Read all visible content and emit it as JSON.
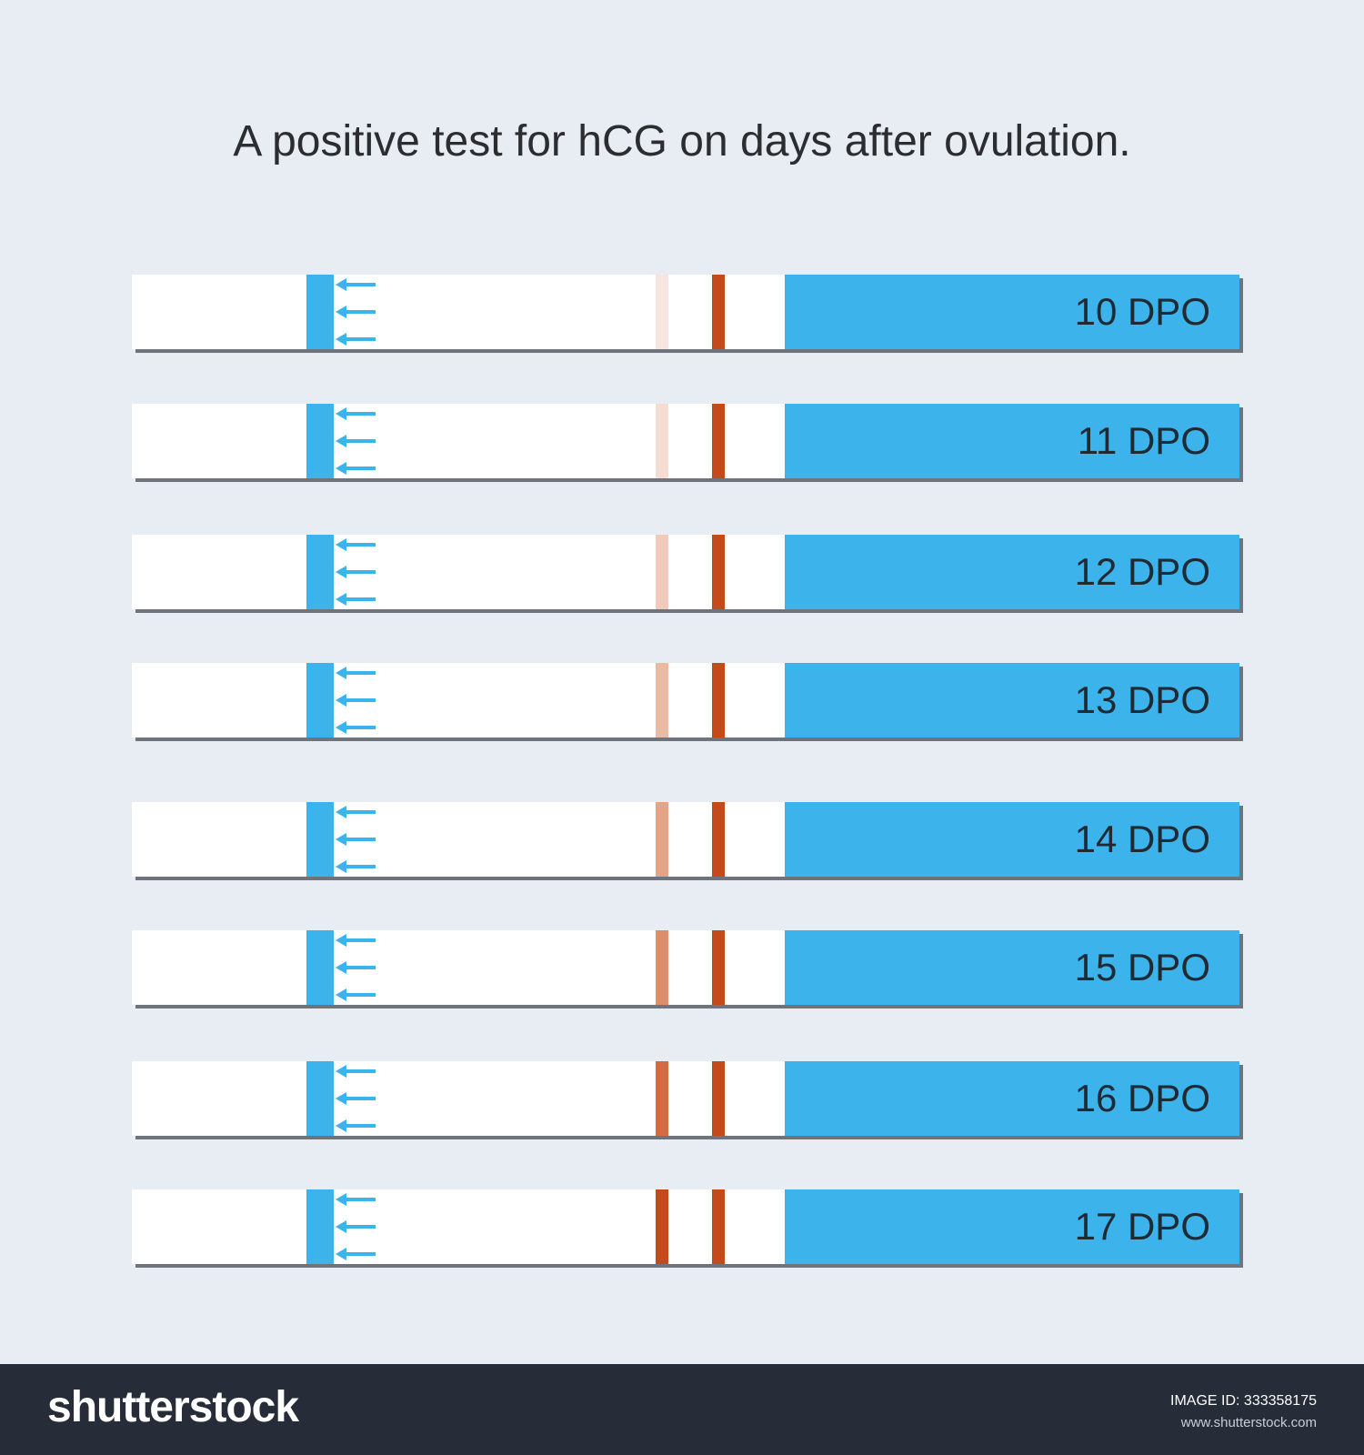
{
  "title": "A positive test for hCG on days after ovulation.",
  "colors": {
    "strip_blue": "#3db3ec",
    "control_line": "#c4491b",
    "arrow": "#3db3ec",
    "background": "#e8ecf3"
  },
  "strips": [
    {
      "label": "10 DPO",
      "test_line_color": "#f7e6df"
    },
    {
      "label": "11 DPO",
      "test_line_color": "#f5ddd3"
    },
    {
      "label": "12 DPO",
      "test_line_color": "#f0cbbb"
    },
    {
      "label": "13 DPO",
      "test_line_color": "#ebbaa3"
    },
    {
      "label": "14 DPO",
      "test_line_color": "#e4a586"
    },
    {
      "label": "15 DPO",
      "test_line_color": "#dc8e6a"
    },
    {
      "label": "16 DPO",
      "test_line_color": "#d46b43"
    },
    {
      "label": "17 DPO",
      "test_line_color": "#c4491b"
    }
  ],
  "footer": {
    "brand": "shutterstock",
    "image_id": "IMAGE ID: 333358175",
    "site": "www.shutterstock.com"
  }
}
